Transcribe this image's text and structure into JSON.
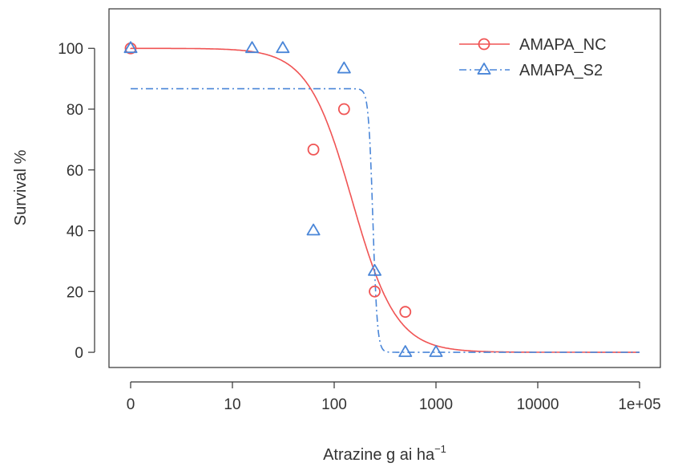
{
  "chart_data": {
    "type": "scatter",
    "title": "",
    "xlabel": "Atrazine g ai ha",
    "xlabel_superscript": "−1",
    "ylabel": "Survival %",
    "x_scale": "log",
    "x_ticks": [
      {
        "value": 0,
        "label": "0"
      },
      {
        "value": 10,
        "label": "10"
      },
      {
        "value": 100,
        "label": "100"
      },
      {
        "value": 1000,
        "label": "1000"
      },
      {
        "value": 10000,
        "label": "10000"
      },
      {
        "value": 100000,
        "label": "1e+05"
      }
    ],
    "y_ticks": [
      {
        "value": 0,
        "label": "0"
      },
      {
        "value": 20,
        "label": "20"
      },
      {
        "value": 40,
        "label": "40"
      },
      {
        "value": 60,
        "label": "60"
      },
      {
        "value": 80,
        "label": "80"
      },
      {
        "value": 100,
        "label": "100"
      }
    ],
    "ylim": [
      -5,
      113
    ],
    "grid": false,
    "legend_position": "top-right",
    "series": [
      {
        "name": "AMAPA_NC",
        "color": "#f05454",
        "marker": "circle",
        "line_style": "solid",
        "points": [
          {
            "x": 0,
            "y": 100
          },
          {
            "x": 62.5,
            "y": 66.7
          },
          {
            "x": 125,
            "y": 80
          },
          {
            "x": 250,
            "y": 20
          },
          {
            "x": 500,
            "y": 13.3
          }
        ],
        "fit": {
          "upper": 100,
          "ed50": 150,
          "slope": 2.0
        }
      },
      {
        "name": "AMAPA_S2",
        "color": "#4a86d8",
        "marker": "triangle",
        "line_style": "dashdot",
        "points": [
          {
            "x": 0,
            "y": 100
          },
          {
            "x": 15.6,
            "y": 100
          },
          {
            "x": 31.25,
            "y": 100
          },
          {
            "x": 62.5,
            "y": 40
          },
          {
            "x": 125,
            "y": 93.3
          },
          {
            "x": 250,
            "y": 26.7
          },
          {
            "x": 500,
            "y": 0
          },
          {
            "x": 1000,
            "y": 0
          }
        ],
        "fit": {
          "upper": 86.7,
          "ed50": 240,
          "slope": 20
        }
      }
    ]
  }
}
